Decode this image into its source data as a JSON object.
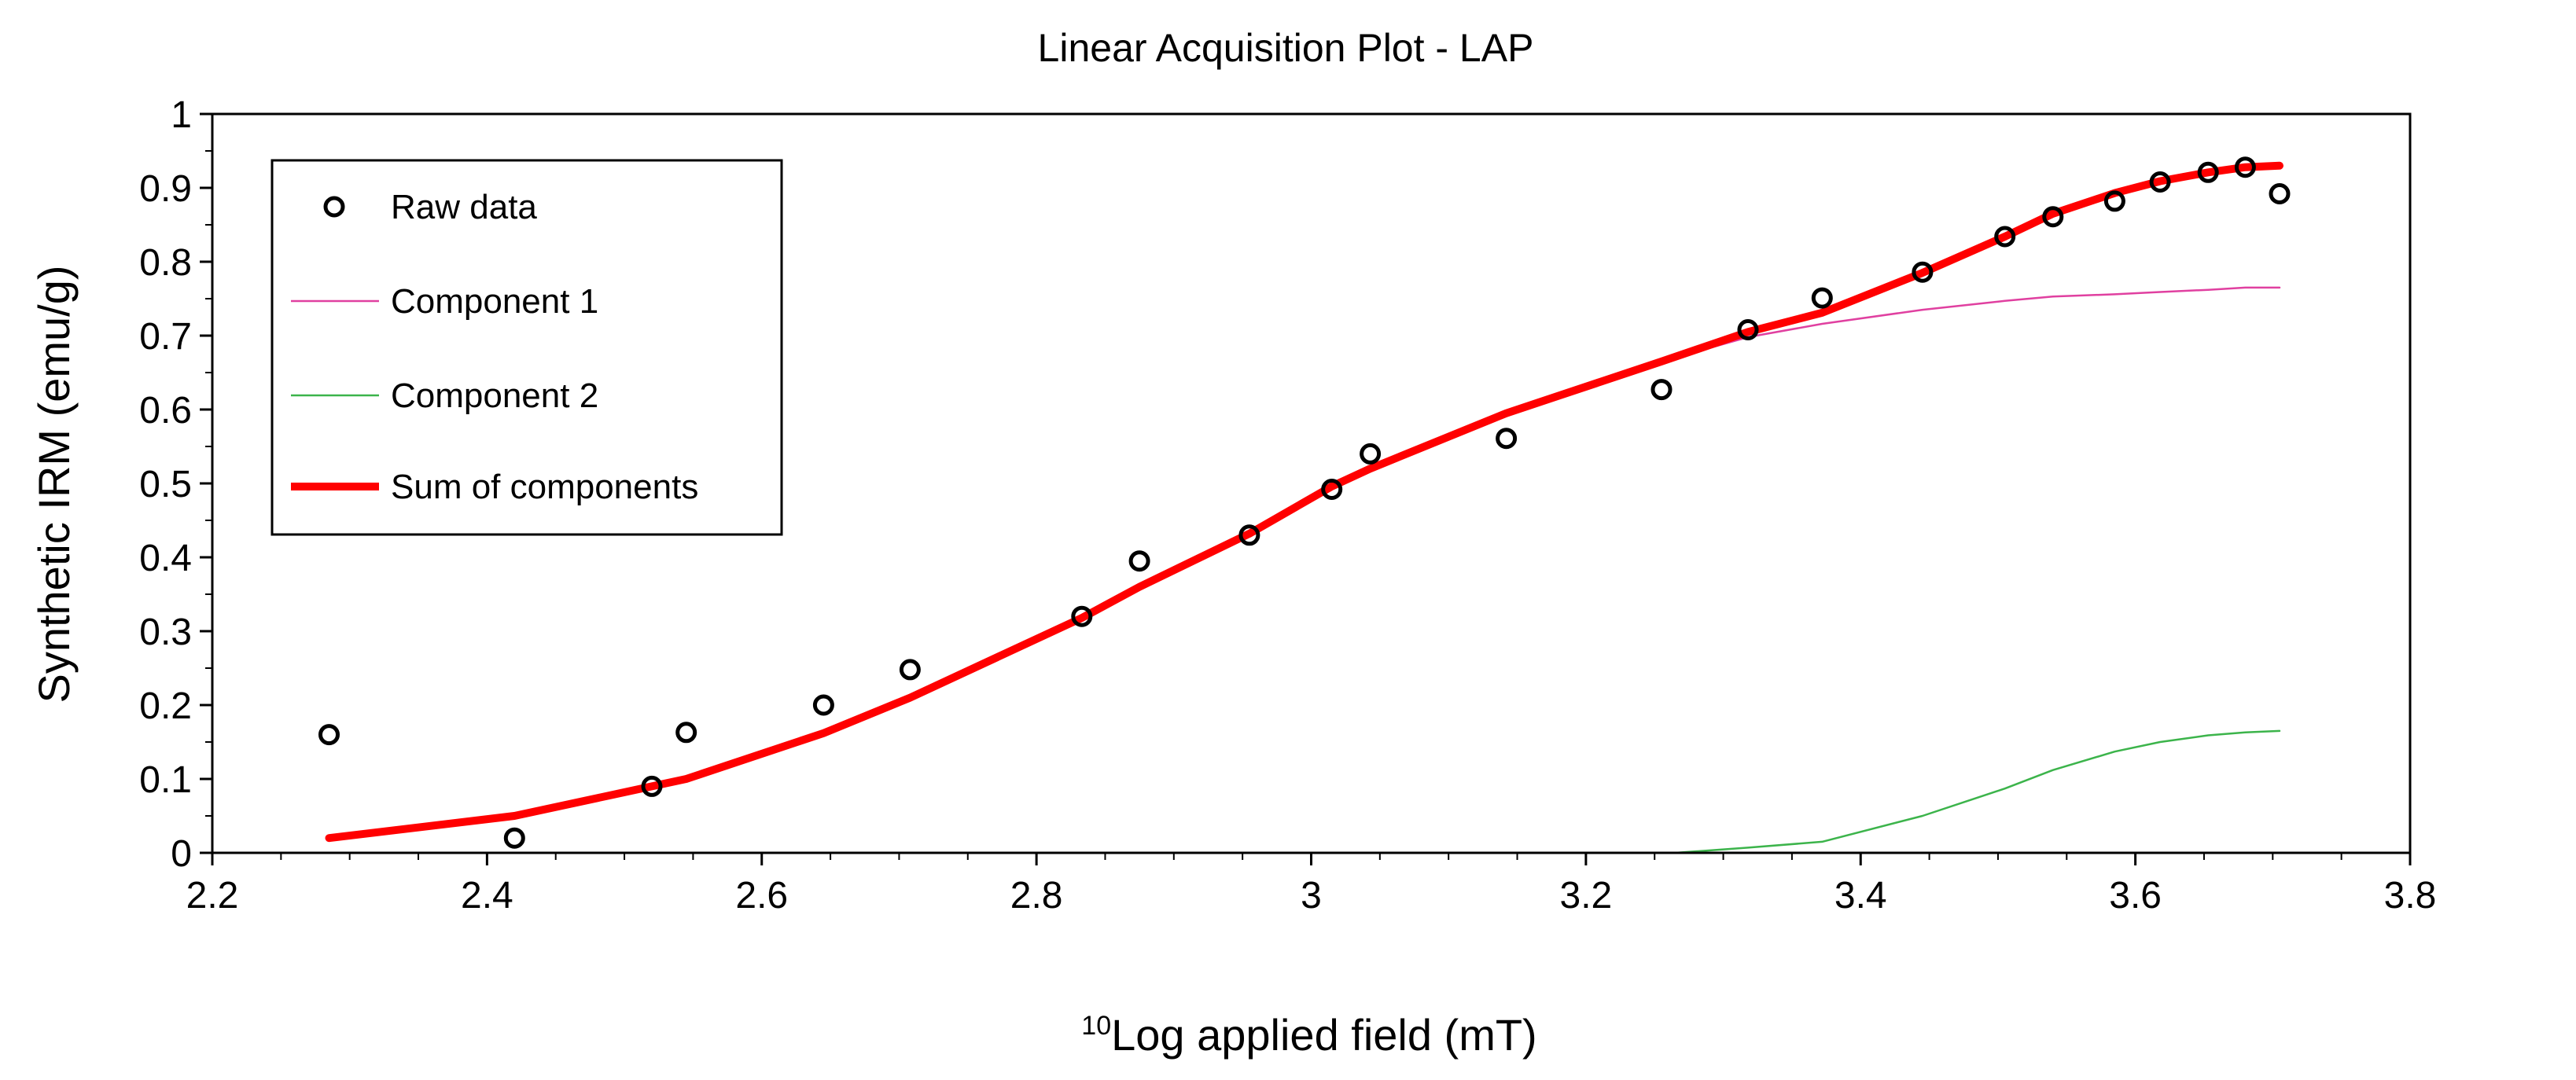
{
  "chart_data": {
    "type": "line",
    "title": "Linear Acquisition Plot - LAP",
    "xlabel": {
      "superscript": "10",
      "text": "Log applied field (mT)"
    },
    "ylabel": "Synthetic IRM (emu/g)",
    "xlim": [
      2.2,
      3.8
    ],
    "ylim": [
      0,
      1
    ],
    "x_ticks": [
      "2.2",
      "2.4",
      "2.6",
      "2.8",
      "3",
      "3.2",
      "3.4",
      "3.6",
      "3.8"
    ],
    "y_ticks": [
      "0",
      "0.1",
      "0.2",
      "0.3",
      "0.4",
      "0.5",
      "0.6",
      "0.7",
      "0.8",
      "0.9",
      "1"
    ],
    "grid": false,
    "legend_position": "top-left",
    "series": [
      {
        "name": "Raw data",
        "kind": "scatter",
        "marker": "open-circle",
        "color": "#000000",
        "points": [
          [
            2.285,
            0.16
          ],
          [
            2.42,
            0.02
          ],
          [
            2.52,
            0.09
          ],
          [
            2.545,
            0.163
          ],
          [
            2.645,
            0.2
          ],
          [
            2.708,
            0.248
          ],
          [
            2.833,
            0.32
          ],
          [
            2.875,
            0.395
          ],
          [
            2.955,
            0.43
          ],
          [
            3.015,
            0.492
          ],
          [
            3.043,
            0.54
          ],
          [
            3.142,
            0.561
          ],
          [
            3.255,
            0.627
          ],
          [
            3.318,
            0.708
          ],
          [
            3.372,
            0.751
          ],
          [
            3.445,
            0.786
          ],
          [
            3.505,
            0.834
          ],
          [
            3.54,
            0.861
          ],
          [
            3.585,
            0.882
          ],
          [
            3.618,
            0.908
          ],
          [
            3.653,
            0.921
          ],
          [
            3.68,
            0.928
          ],
          [
            3.705,
            0.892
          ]
        ]
      },
      {
        "name": "Component 1",
        "kind": "line",
        "color": "#e040a0",
        "stroke_weight": "thin",
        "points": [
          [
            2.285,
            0.02
          ],
          [
            2.42,
            0.05
          ],
          [
            2.52,
            0.09
          ],
          [
            2.545,
            0.1
          ],
          [
            2.645,
            0.162
          ],
          [
            2.708,
            0.21
          ],
          [
            2.833,
            0.318
          ],
          [
            2.875,
            0.36
          ],
          [
            2.955,
            0.432
          ],
          [
            3.015,
            0.496
          ],
          [
            3.043,
            0.52
          ],
          [
            3.142,
            0.595
          ],
          [
            3.255,
            0.665
          ],
          [
            3.318,
            0.698
          ],
          [
            3.372,
            0.716
          ],
          [
            3.445,
            0.735
          ],
          [
            3.505,
            0.747
          ],
          [
            3.54,
            0.753
          ],
          [
            3.585,
            0.756
          ],
          [
            3.618,
            0.759
          ],
          [
            3.653,
            0.762
          ],
          [
            3.68,
            0.765
          ],
          [
            3.705,
            0.765
          ]
        ]
      },
      {
        "name": "Component 2",
        "kind": "line",
        "color": "#3cb44b",
        "stroke_weight": "thin",
        "points": [
          [
            3.265,
            0.0
          ],
          [
            3.318,
            0.007
          ],
          [
            3.372,
            0.015
          ],
          [
            3.445,
            0.05
          ],
          [
            3.505,
            0.087
          ],
          [
            3.54,
            0.112
          ],
          [
            3.585,
            0.137
          ],
          [
            3.618,
            0.15
          ],
          [
            3.653,
            0.159
          ],
          [
            3.68,
            0.163
          ],
          [
            3.705,
            0.165
          ]
        ]
      },
      {
        "name": "Sum of components",
        "kind": "line",
        "color": "#ff0000",
        "stroke_weight": "thick",
        "points": [
          [
            2.285,
            0.02
          ],
          [
            2.42,
            0.05
          ],
          [
            2.52,
            0.09
          ],
          [
            2.545,
            0.1
          ],
          [
            2.645,
            0.162
          ],
          [
            2.708,
            0.21
          ],
          [
            2.833,
            0.318
          ],
          [
            2.875,
            0.36
          ],
          [
            2.955,
            0.432
          ],
          [
            3.015,
            0.496
          ],
          [
            3.043,
            0.52
          ],
          [
            3.142,
            0.595
          ],
          [
            3.255,
            0.665
          ],
          [
            3.318,
            0.705
          ],
          [
            3.372,
            0.731
          ],
          [
            3.445,
            0.785
          ],
          [
            3.505,
            0.834
          ],
          [
            3.54,
            0.865
          ],
          [
            3.585,
            0.893
          ],
          [
            3.618,
            0.909
          ],
          [
            3.653,
            0.921
          ],
          [
            3.68,
            0.928
          ],
          [
            3.705,
            0.93
          ]
        ]
      }
    ]
  }
}
